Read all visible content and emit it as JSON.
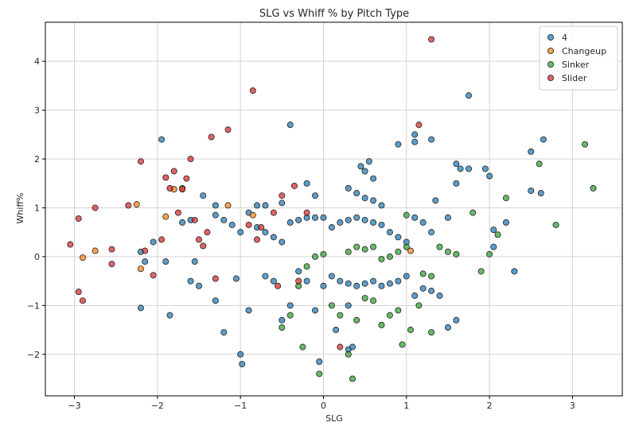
{
  "chart_data": {
    "type": "scatter",
    "title": "SLG vs Whiff % by Pitch Type",
    "xlabel": "SLG",
    "ylabel": "Whiff%",
    "xlim": [
      -3.35,
      3.6
    ],
    "ylim": [
      -2.85,
      4.8
    ],
    "xticks": [
      -3,
      -2,
      -1,
      0,
      1,
      2,
      3
    ],
    "yticks": [
      -2,
      -1,
      0,
      1,
      2,
      3,
      4
    ],
    "grid": true,
    "legend_position": "top-right",
    "series": [
      {
        "name": "4",
        "color": "#1f77b4",
        "points": [
          [
            -1.95,
            2.4
          ],
          [
            -0.4,
            2.7
          ],
          [
            1.1,
            2.5
          ],
          [
            1.3,
            2.4
          ],
          [
            1.75,
            3.3
          ],
          [
            0.9,
            2.3
          ],
          [
            1.1,
            2.35
          ],
          [
            2.65,
            2.4
          ],
          [
            2.5,
            2.15
          ],
          [
            1.6,
            1.9
          ],
          [
            1.65,
            1.8
          ],
          [
            1.75,
            1.8
          ],
          [
            1.95,
            1.8
          ],
          [
            2.0,
            1.65
          ],
          [
            0.45,
            1.85
          ],
          [
            0.5,
            1.75
          ],
          [
            0.55,
            1.95
          ],
          [
            0.6,
            1.6
          ],
          [
            1.6,
            1.5
          ],
          [
            2.5,
            1.35
          ],
          [
            2.62,
            1.3
          ],
          [
            1.35,
            1.15
          ],
          [
            0.3,
            1.4
          ],
          [
            0.4,
            1.3
          ],
          [
            0.5,
            1.2
          ],
          [
            0.6,
            1.15
          ],
          [
            0.7,
            1.05
          ],
          [
            -1.45,
            1.25
          ],
          [
            -1.3,
            1.05
          ],
          [
            -0.8,
            1.05
          ],
          [
            -0.7,
            1.05
          ],
          [
            -0.5,
            1.1
          ],
          [
            -0.2,
            1.5
          ],
          [
            -0.1,
            1.25
          ],
          [
            -2.2,
            0.1
          ],
          [
            -2.15,
            -0.1
          ],
          [
            -2.05,
            0.3
          ],
          [
            -1.9,
            -0.1
          ],
          [
            -1.7,
            0.7
          ],
          [
            -1.6,
            0.75
          ],
          [
            -1.55,
            -0.1
          ],
          [
            -1.3,
            0.85
          ],
          [
            -1.2,
            0.75
          ],
          [
            -1.1,
            0.65
          ],
          [
            -1.0,
            0.5
          ],
          [
            -0.9,
            0.9
          ],
          [
            -0.8,
            0.6
          ],
          [
            -0.7,
            0.5
          ],
          [
            -0.6,
            0.4
          ],
          [
            -0.5,
            0.3
          ],
          [
            -0.4,
            0.7
          ],
          [
            -0.3,
            0.75
          ],
          [
            -0.2,
            0.8
          ],
          [
            -0.1,
            0.8
          ],
          [
            0.0,
            0.8
          ],
          [
            0.1,
            0.6
          ],
          [
            0.2,
            0.7
          ],
          [
            0.3,
            0.75
          ],
          [
            0.4,
            0.8
          ],
          [
            0.5,
            0.75
          ],
          [
            0.6,
            0.7
          ],
          [
            0.7,
            0.65
          ],
          [
            0.8,
            0.5
          ],
          [
            0.9,
            0.4
          ],
          [
            1.0,
            0.3
          ],
          [
            1.1,
            0.8
          ],
          [
            1.2,
            0.7
          ],
          [
            1.3,
            0.5
          ],
          [
            1.5,
            0.8
          ],
          [
            2.05,
            0.55
          ],
          [
            2.2,
            0.7
          ],
          [
            2.05,
            0.2
          ],
          [
            -2.2,
            -1.05
          ],
          [
            -1.85,
            -1.2
          ],
          [
            -1.6,
            -0.5
          ],
          [
            -1.5,
            -0.6
          ],
          [
            -1.3,
            -0.9
          ],
          [
            -1.2,
            -1.55
          ],
          [
            -1.05,
            -0.45
          ],
          [
            -1.0,
            -2.0
          ],
          [
            -0.98,
            -2.2
          ],
          [
            -0.9,
            -1.1
          ],
          [
            -0.7,
            -0.4
          ],
          [
            -0.6,
            -0.5
          ],
          [
            -0.5,
            -1.3
          ],
          [
            -0.4,
            -1.0
          ],
          [
            -0.3,
            -0.3
          ],
          [
            -0.2,
            -0.5
          ],
          [
            -0.1,
            -1.1
          ],
          [
            0.0,
            -0.6
          ],
          [
            0.1,
            -0.4
          ],
          [
            0.15,
            -1.5
          ],
          [
            0.2,
            -0.5
          ],
          [
            0.3,
            -0.55
          ],
          [
            0.4,
            -0.6
          ],
          [
            0.5,
            -0.55
          ],
          [
            0.6,
            -0.5
          ],
          [
            0.7,
            -0.6
          ],
          [
            0.8,
            -0.55
          ],
          [
            0.9,
            -0.5
          ],
          [
            1.0,
            -0.4
          ],
          [
            1.1,
            -0.8
          ],
          [
            1.2,
            -0.65
          ],
          [
            1.3,
            -0.7
          ],
          [
            1.4,
            -0.8
          ],
          [
            0.3,
            -1.9
          ],
          [
            0.35,
            -1.85
          ],
          [
            0.3,
            -1.0
          ],
          [
            -0.05,
            -2.15
          ],
          [
            1.5,
            -1.45
          ],
          [
            1.6,
            -1.3
          ],
          [
            2.3,
            -0.3
          ]
        ]
      },
      {
        "name": "Changeup",
        "color": "#ff7f0e",
        "points": [
          [
            -2.9,
            -0.02
          ],
          [
            -2.75,
            0.12
          ],
          [
            -2.25,
            1.07
          ],
          [
            -2.2,
            -0.25
          ],
          [
            -1.9,
            0.82
          ],
          [
            -1.8,
            1.38
          ],
          [
            -1.7,
            1.4
          ],
          [
            -1.15,
            1.05
          ],
          [
            -0.85,
            0.85
          ],
          [
            1.05,
            0.12
          ]
        ]
      },
      {
        "name": "Sinker",
        "color": "#2ca02c",
        "points": [
          [
            3.15,
            2.3
          ],
          [
            3.25,
            1.4
          ],
          [
            2.6,
            1.9
          ],
          [
            2.2,
            1.2
          ],
          [
            2.8,
            0.65
          ],
          [
            1.8,
            0.9
          ],
          [
            2.1,
            0.45
          ],
          [
            2.0,
            0.05
          ],
          [
            1.9,
            -0.3
          ],
          [
            1.6,
            0.05
          ],
          [
            1.5,
            0.1
          ],
          [
            1.4,
            0.2
          ],
          [
            1.3,
            -0.4
          ],
          [
            1.2,
            -0.35
          ],
          [
            1.3,
            -1.55
          ],
          [
            1.15,
            -1.0
          ],
          [
            1.0,
            0.85
          ],
          [
            1.0,
            0.2
          ],
          [
            0.9,
            0.1
          ],
          [
            0.8,
            0.0
          ],
          [
            0.7,
            -0.05
          ],
          [
            0.6,
            0.2
          ],
          [
            0.5,
            0.15
          ],
          [
            0.4,
            0.2
          ],
          [
            0.3,
            0.1
          ],
          [
            0.0,
            0.05
          ],
          [
            -0.1,
            0.0
          ],
          [
            -0.2,
            -0.2
          ],
          [
            -0.3,
            -0.6
          ],
          [
            -0.4,
            -1.2
          ],
          [
            -0.5,
            -1.45
          ],
          [
            -0.25,
            -1.85
          ],
          [
            -0.05,
            -2.4
          ],
          [
            0.3,
            -2.0
          ],
          [
            0.35,
            -2.5
          ],
          [
            0.2,
            -1.2
          ],
          [
            0.4,
            -1.3
          ],
          [
            0.5,
            -0.85
          ],
          [
            0.6,
            -0.9
          ],
          [
            0.7,
            -1.4
          ],
          [
            0.8,
            -1.2
          ],
          [
            0.9,
            -1.1
          ],
          [
            1.05,
            -1.5
          ],
          [
            0.95,
            -1.8
          ],
          [
            0.1,
            -1.0
          ]
        ]
      },
      {
        "name": "Slider",
        "color": "#d62728",
        "points": [
          [
            -3.05,
            0.25
          ],
          [
            -2.95,
            0.78
          ],
          [
            -2.95,
            -0.72
          ],
          [
            -2.9,
            -0.9
          ],
          [
            -2.75,
            1.0
          ],
          [
            -2.55,
            0.15
          ],
          [
            -2.55,
            -0.15
          ],
          [
            -2.35,
            1.05
          ],
          [
            -2.2,
            1.95
          ],
          [
            -2.15,
            0.12
          ],
          [
            -2.05,
            -0.38
          ],
          [
            -1.95,
            0.35
          ],
          [
            -1.9,
            1.62
          ],
          [
            -1.85,
            1.4
          ],
          [
            -1.8,
            1.75
          ],
          [
            -1.75,
            0.9
          ],
          [
            -1.7,
            1.38
          ],
          [
            -1.65,
            1.6
          ],
          [
            -1.6,
            2.0
          ],
          [
            -1.55,
            0.75
          ],
          [
            -1.5,
            0.35
          ],
          [
            -1.45,
            0.22
          ],
          [
            -1.4,
            0.5
          ],
          [
            -1.35,
            2.45
          ],
          [
            -1.15,
            2.6
          ],
          [
            -1.3,
            -0.45
          ],
          [
            -0.85,
            3.4
          ],
          [
            -0.9,
            0.65
          ],
          [
            -0.75,
            0.6
          ],
          [
            -0.6,
            0.9
          ],
          [
            -0.5,
            1.25
          ],
          [
            -0.35,
            1.45
          ],
          [
            -0.8,
            0.35
          ],
          [
            -0.55,
            -0.6
          ],
          [
            -0.3,
            -0.5
          ],
          [
            1.15,
            2.7
          ],
          [
            1.3,
            4.45
          ],
          [
            0.2,
            -1.85
          ],
          [
            -0.2,
            0.9
          ]
        ]
      }
    ]
  }
}
